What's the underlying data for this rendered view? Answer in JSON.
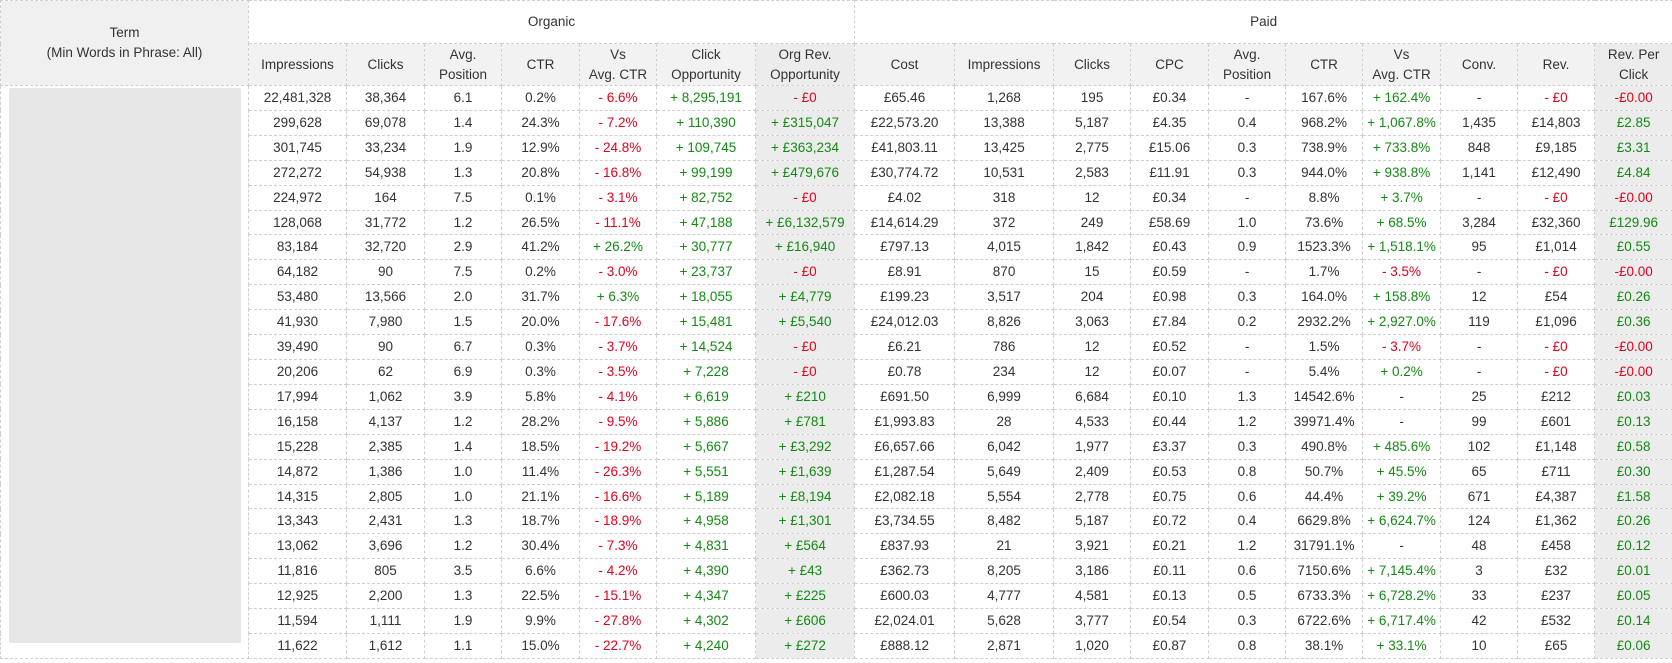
{
  "header": {
    "term": "Term",
    "term_note": "(Min Words in Phrase: All)",
    "groups": [
      "Organic",
      "Paid"
    ],
    "columns": [
      "Impressions",
      "Clicks",
      "Avg.\nPosition",
      "CTR",
      "Vs\nAvg. CTR",
      "Click\nOpportunity",
      "Org Rev.\nOpportunity",
      "Cost",
      "Impressions",
      "Clicks",
      "CPC",
      "Avg.\nPosition",
      "CTR",
      "Vs\nAvg. CTR",
      "Conv.",
      "Rev.",
      "Rev. Per\nClick"
    ]
  },
  "table": {
    "rows": [
      [
        "22,481,328",
        "38,364",
        "6.1",
        "0.2%",
        "- 6.6%",
        "+ 8,295,191",
        "- £0",
        "£65.46",
        "1,268",
        "195",
        "£0.34",
        "-",
        "167.6%",
        "+ 162.4%",
        "-",
        "- £0",
        "-£0.00"
      ],
      [
        "299,628",
        "69,078",
        "1.4",
        "24.3%",
        "- 7.2%",
        "+ 110,390",
        "+ £315,047",
        "£22,573.20",
        "13,388",
        "5,187",
        "£4.35",
        "0.4",
        "968.2%",
        "+ 1,067.8%",
        "1,435",
        "£14,803",
        "£2.85"
      ],
      [
        "301,745",
        "33,234",
        "1.9",
        "12.9%",
        "- 24.8%",
        "+ 109,745",
        "+ £363,234",
        "£41,803.11",
        "13,425",
        "2,775",
        "£15.06",
        "0.3",
        "738.9%",
        "+ 733.8%",
        "848",
        "£9,185",
        "£3.31"
      ],
      [
        "272,272",
        "54,938",
        "1.3",
        "20.8%",
        "- 16.8%",
        "+ 99,199",
        "+ £479,676",
        "£30,774.72",
        "10,531",
        "2,583",
        "£11.91",
        "0.3",
        "944.0%",
        "+ 938.8%",
        "1,141",
        "£12,490",
        "£4.84"
      ],
      [
        "224,972",
        "164",
        "7.5",
        "0.1%",
        "- 3.1%",
        "+ 82,752",
        "- £0",
        "£4.02",
        "318",
        "12",
        "£0.34",
        "-",
        "8.8%",
        "+ 3.7%",
        "-",
        "- £0",
        "-£0.00"
      ],
      [
        "128,068",
        "31,772",
        "1.2",
        "26.5%",
        "- 11.1%",
        "+ 47,188",
        "+ £6,132,579",
        "£14,614.29",
        "372",
        "249",
        "£58.69",
        "1.0",
        "73.6%",
        "+ 68.5%",
        "3,284",
        "£32,360",
        "£129.96"
      ],
      [
        "83,184",
        "32,720",
        "2.9",
        "41.2%",
        "+ 26.2%",
        "+ 30,777",
        "+ £16,940",
        "£797.13",
        "4,015",
        "1,842",
        "£0.43",
        "0.9",
        "1523.3%",
        "+ 1,518.1%",
        "95",
        "£1,014",
        "£0.55"
      ],
      [
        "64,182",
        "90",
        "7.5",
        "0.2%",
        "- 3.0%",
        "+ 23,737",
        "- £0",
        "£8.91",
        "870",
        "15",
        "£0.59",
        "-",
        "1.7%",
        "- 3.5%",
        "-",
        "- £0",
        "-£0.00"
      ],
      [
        "53,480",
        "13,566",
        "2.0",
        "31.7%",
        "+ 6.3%",
        "+ 18,055",
        "+ £4,779",
        "£199.23",
        "3,517",
        "204",
        "£0.98",
        "0.3",
        "164.0%",
        "+ 158.8%",
        "12",
        "£54",
        "£0.26"
      ],
      [
        "41,930",
        "7,980",
        "1.5",
        "20.0%",
        "- 17.6%",
        "+ 15,481",
        "+ £5,540",
        "£24,012.03",
        "8,826",
        "3,063",
        "£7.84",
        "0.2",
        "2932.2%",
        "+ 2,927.0%",
        "119",
        "£1,096",
        "£0.36"
      ],
      [
        "39,490",
        "90",
        "6.7",
        "0.3%",
        "- 3.7%",
        "+ 14,524",
        "- £0",
        "£6.21",
        "786",
        "12",
        "£0.52",
        "-",
        "1.5%",
        "- 3.7%",
        "-",
        "- £0",
        "-£0.00"
      ],
      [
        "20,206",
        "62",
        "6.9",
        "0.3%",
        "- 3.5%",
        "+ 7,228",
        "- £0",
        "£0.78",
        "234",
        "12",
        "£0.07",
        "-",
        "5.4%",
        "+ 0.2%",
        "-",
        "- £0",
        "-£0.00"
      ],
      [
        "17,994",
        "1,062",
        "3.9",
        "5.8%",
        "- 4.1%",
        "+ 6,619",
        "+ £210",
        "£691.50",
        "6,999",
        "6,684",
        "£0.10",
        "1.3",
        "14542.6%",
        "-",
        "25",
        "£212",
        "£0.03"
      ],
      [
        "16,158",
        "4,137",
        "1.2",
        "28.2%",
        "- 9.5%",
        "+ 5,886",
        "+ £781",
        "£1,993.83",
        "28",
        "4,533",
        "£0.44",
        "1.2",
        "39971.4%",
        "-",
        "99",
        "£601",
        "£0.13"
      ],
      [
        "15,228",
        "2,385",
        "1.4",
        "18.5%",
        "- 19.2%",
        "+ 5,667",
        "+ £3,292",
        "£6,657.66",
        "6,042",
        "1,977",
        "£3.37",
        "0.3",
        "490.8%",
        "+ 485.6%",
        "102",
        "£1,148",
        "£0.58"
      ],
      [
        "14,872",
        "1,386",
        "1.0",
        "11.4%",
        "- 26.3%",
        "+ 5,551",
        "+ £1,639",
        "£1,287.54",
        "5,649",
        "2,409",
        "£0.53",
        "0.8",
        "50.7%",
        "+ 45.5%",
        "65",
        "£711",
        "£0.30"
      ],
      [
        "14,315",
        "2,805",
        "1.0",
        "21.1%",
        "- 16.6%",
        "+ 5,189",
        "+ £8,194",
        "£2,082.18",
        "5,554",
        "2,778",
        "£0.75",
        "0.6",
        "44.4%",
        "+ 39.2%",
        "671",
        "£4,387",
        "£1.58"
      ],
      [
        "13,343",
        "2,431",
        "1.3",
        "18.7%",
        "- 18.9%",
        "+ 4,958",
        "+ £1,301",
        "£3,734.55",
        "8,482",
        "5,187",
        "£0.72",
        "0.4",
        "6629.8%",
        "+ 6,624.7%",
        "124",
        "£1,362",
        "£0.26"
      ],
      [
        "13,062",
        "3,696",
        "1.2",
        "30.4%",
        "- 7.3%",
        "+ 4,831",
        "+ £564",
        "£837.93",
        "21",
        "3,921",
        "£0.21",
        "1.2",
        "31791.1%",
        "-",
        "48",
        "£458",
        "£0.12"
      ],
      [
        "11,816",
        "805",
        "3.5",
        "6.6%",
        "- 4.2%",
        "+ 4,390",
        "+ £43",
        "£362.73",
        "8,205",
        "3,186",
        "£0.11",
        "0.6",
        "7150.6%",
        "+ 7,145.4%",
        "3",
        "£32",
        "£0.01"
      ],
      [
        "12,925",
        "2,200",
        "1.3",
        "22.5%",
        "- 15.1%",
        "+ 4,347",
        "+ £225",
        "£600.03",
        "4,777",
        "4,581",
        "£0.13",
        "0.5",
        "6733.3%",
        "+ 6,728.2%",
        "33",
        "£237",
        "£0.05"
      ],
      [
        "11,594",
        "1,111",
        "1.9",
        "9.9%",
        "- 27.8%",
        "+ 4,302",
        "+ £606",
        "£2,024.01",
        "5,628",
        "3,777",
        "£0.54",
        "0.3",
        "6722.6%",
        "+ 6,717.4%",
        "42",
        "£532",
        "£0.14"
      ],
      [
        "11,622",
        "1,612",
        "1.1",
        "15.0%",
        "- 22.7%",
        "+ 4,240",
        "+ £272",
        "£888.12",
        "2,871",
        "1,020",
        "£0.87",
        "0.8",
        "38.1%",
        "+ 33.1%",
        "10",
        "£65",
        "£0.06"
      ]
    ]
  }
}
